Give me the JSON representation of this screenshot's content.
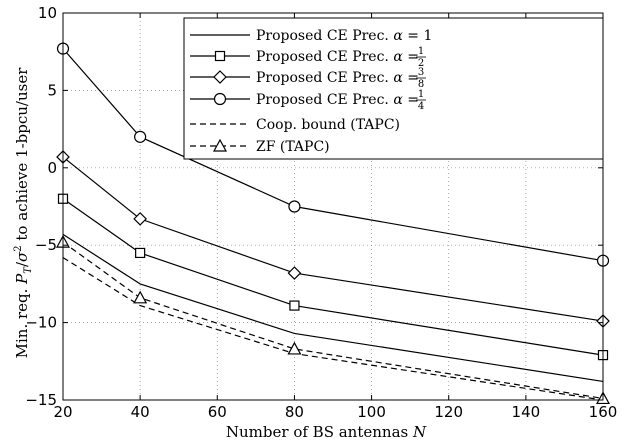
{
  "chart_data": {
    "type": "line",
    "x": [
      20,
      40,
      80,
      160
    ],
    "xlim": [
      20,
      160
    ],
    "ylim": [
      -15,
      10
    ],
    "xticks": [
      20,
      40,
      60,
      80,
      100,
      120,
      140,
      160
    ],
    "yticks": [
      10,
      5,
      0,
      -5,
      -10,
      -15
    ],
    "xtick_labels": [
      "20",
      "40",
      "60",
      "80",
      "100",
      "120",
      "140",
      "160"
    ],
    "ytick_labels": [
      "10",
      "5",
      "0",
      "−5",
      "−10",
      "−15"
    ],
    "xlabel": "Number of BS antennas N",
    "ylabel": "Min. req. P_T/σ² to achieve 1-bpcu/user",
    "grid": true,
    "legend_position": "top-right",
    "series": [
      {
        "name": "Proposed CE Prec. α = 1",
        "values": [
          -4.3,
          -7.5,
          -10.7,
          -13.8
        ],
        "line": "solid",
        "marker": "none"
      },
      {
        "name": "Proposed CE Prec. α = 1/2",
        "values": [
          -2.0,
          -5.5,
          -8.9,
          -12.1
        ],
        "line": "solid",
        "marker": "square"
      },
      {
        "name": "Proposed CE Prec. α = 3/8",
        "values": [
          0.7,
          -3.3,
          -6.8,
          -9.9
        ],
        "line": "solid",
        "marker": "diamond"
      },
      {
        "name": "Proposed CE Prec. α = 1/4",
        "values": [
          7.7,
          2.0,
          -2.5,
          -6.0
        ],
        "line": "solid",
        "marker": "circle"
      },
      {
        "name": "Coop. bound (TAPC)",
        "values": [
          -5.8,
          -8.9,
          -12.0,
          -15.0
        ],
        "line": "dashed",
        "marker": "none"
      },
      {
        "name": "ZF (TAPC)",
        "values": [
          -4.8,
          -8.4,
          -11.7,
          -14.9
        ],
        "line": "dashed",
        "marker": "triangle"
      }
    ]
  }
}
